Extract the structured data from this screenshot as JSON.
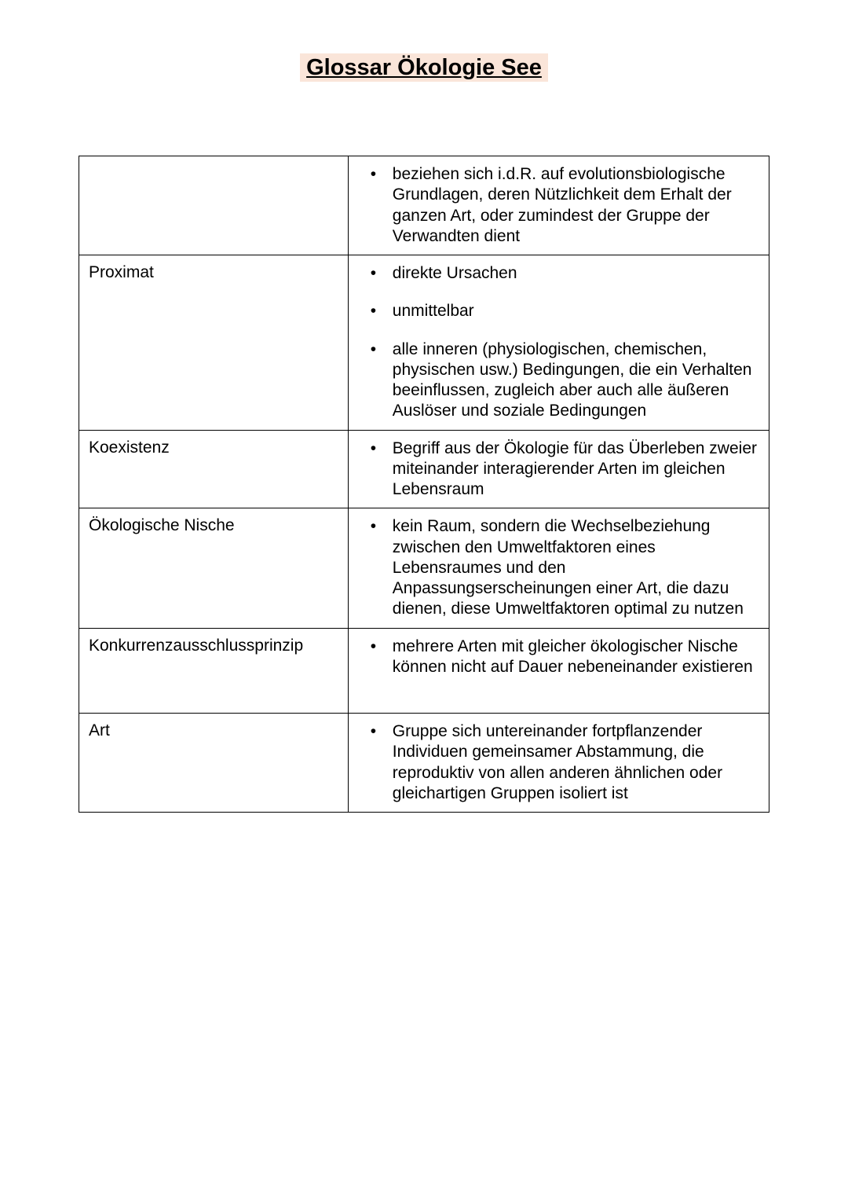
{
  "title": "Glossar Ökologie See",
  "rows": [
    {
      "term": "",
      "defs": [
        "beziehen sich i.d.R. auf evolutionsbiologische Grundlagen, deren Nützlichkeit dem Erhalt der ganzen Art, oder zumindest der Gruppe der Verwandten dient"
      ]
    },
    {
      "term": "Proximat",
      "defs": [
        "direkte Ursachen",
        "unmittelbar",
        "alle inneren (physiologischen, chemischen, physischen usw.) Bedingungen, die ein Verhalten beeinflussen, zugleich aber auch alle äußeren Auslöser und soziale Bedingungen"
      ]
    },
    {
      "term": "Koexistenz",
      "defs": [
        "Begriff aus der Ökologie für das Überleben zweier miteinander interagierender Arten im gleichen Lebensraum"
      ]
    },
    {
      "term": "Ökologische Nische",
      "defs": [
        "kein Raum, sondern die Wechselbeziehung zwischen den Umweltfaktoren eines Lebensraumes und den Anpassungserscheinungen einer Art, die dazu dienen, diese Umweltfaktoren optimal zu nutzen"
      ]
    },
    {
      "term": "Konkurrenzausschlussprinzip",
      "defs": [
        "mehrere Arten mit gleicher ökologischer Nische können nicht auf Dauer nebeneinander existieren"
      ]
    },
    {
      "term": "Art",
      "defs": [
        "Gruppe sich untereinander fortpflanzender Individuen gemeinsamer Abstammung, die reproduktiv von allen anderen ähnlichen oder gleichartigen Gruppen isoliert ist"
      ]
    }
  ]
}
